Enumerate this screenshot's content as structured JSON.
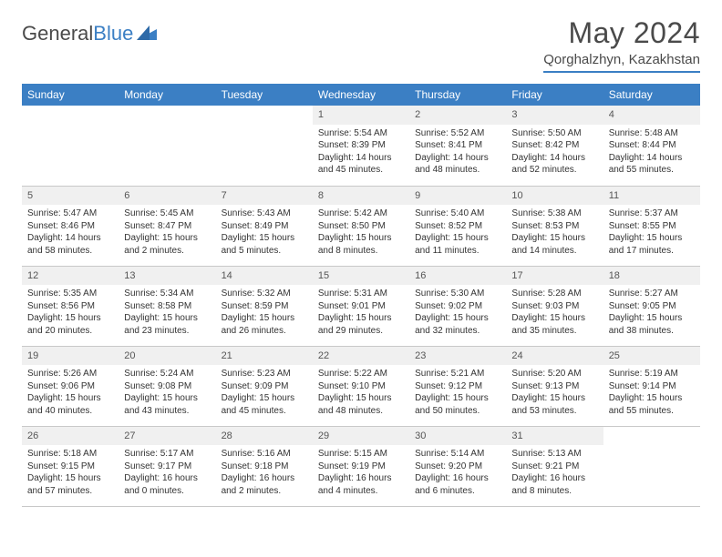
{
  "logo": {
    "part1": "General",
    "part2": "Blue"
  },
  "title": "May 2024",
  "subtitle": "Qorghalzhyn, Kazakhstan",
  "colors": {
    "accent": "#3b7fc4",
    "header_bg": "#3b7fc4",
    "header_text": "#ffffff",
    "daynum_bg": "#f0f0f0",
    "border": "#c8c8c8",
    "text": "#333333",
    "background": "#ffffff"
  },
  "columns": [
    "Sunday",
    "Monday",
    "Tuesday",
    "Wednesday",
    "Thursday",
    "Friday",
    "Saturday"
  ],
  "layout": {
    "weeks": 5,
    "first_day_col": 3,
    "days_in_month": 31
  },
  "days": {
    "1": {
      "sunrise": "5:54 AM",
      "sunset": "8:39 PM",
      "daylight": "14 hours and 45 minutes."
    },
    "2": {
      "sunrise": "5:52 AM",
      "sunset": "8:41 PM",
      "daylight": "14 hours and 48 minutes."
    },
    "3": {
      "sunrise": "5:50 AM",
      "sunset": "8:42 PM",
      "daylight": "14 hours and 52 minutes."
    },
    "4": {
      "sunrise": "5:48 AM",
      "sunset": "8:44 PM",
      "daylight": "14 hours and 55 minutes."
    },
    "5": {
      "sunrise": "5:47 AM",
      "sunset": "8:46 PM",
      "daylight": "14 hours and 58 minutes."
    },
    "6": {
      "sunrise": "5:45 AM",
      "sunset": "8:47 PM",
      "daylight": "15 hours and 2 minutes."
    },
    "7": {
      "sunrise": "5:43 AM",
      "sunset": "8:49 PM",
      "daylight": "15 hours and 5 minutes."
    },
    "8": {
      "sunrise": "5:42 AM",
      "sunset": "8:50 PM",
      "daylight": "15 hours and 8 minutes."
    },
    "9": {
      "sunrise": "5:40 AM",
      "sunset": "8:52 PM",
      "daylight": "15 hours and 11 minutes."
    },
    "10": {
      "sunrise": "5:38 AM",
      "sunset": "8:53 PM",
      "daylight": "15 hours and 14 minutes."
    },
    "11": {
      "sunrise": "5:37 AM",
      "sunset": "8:55 PM",
      "daylight": "15 hours and 17 minutes."
    },
    "12": {
      "sunrise": "5:35 AM",
      "sunset": "8:56 PM",
      "daylight": "15 hours and 20 minutes."
    },
    "13": {
      "sunrise": "5:34 AM",
      "sunset": "8:58 PM",
      "daylight": "15 hours and 23 minutes."
    },
    "14": {
      "sunrise": "5:32 AM",
      "sunset": "8:59 PM",
      "daylight": "15 hours and 26 minutes."
    },
    "15": {
      "sunrise": "5:31 AM",
      "sunset": "9:01 PM",
      "daylight": "15 hours and 29 minutes."
    },
    "16": {
      "sunrise": "5:30 AM",
      "sunset": "9:02 PM",
      "daylight": "15 hours and 32 minutes."
    },
    "17": {
      "sunrise": "5:28 AM",
      "sunset": "9:03 PM",
      "daylight": "15 hours and 35 minutes."
    },
    "18": {
      "sunrise": "5:27 AM",
      "sunset": "9:05 PM",
      "daylight": "15 hours and 38 minutes."
    },
    "19": {
      "sunrise": "5:26 AM",
      "sunset": "9:06 PM",
      "daylight": "15 hours and 40 minutes."
    },
    "20": {
      "sunrise": "5:24 AM",
      "sunset": "9:08 PM",
      "daylight": "15 hours and 43 minutes."
    },
    "21": {
      "sunrise": "5:23 AM",
      "sunset": "9:09 PM",
      "daylight": "15 hours and 45 minutes."
    },
    "22": {
      "sunrise": "5:22 AM",
      "sunset": "9:10 PM",
      "daylight": "15 hours and 48 minutes."
    },
    "23": {
      "sunrise": "5:21 AM",
      "sunset": "9:12 PM",
      "daylight": "15 hours and 50 minutes."
    },
    "24": {
      "sunrise": "5:20 AM",
      "sunset": "9:13 PM",
      "daylight": "15 hours and 53 minutes."
    },
    "25": {
      "sunrise": "5:19 AM",
      "sunset": "9:14 PM",
      "daylight": "15 hours and 55 minutes."
    },
    "26": {
      "sunrise": "5:18 AM",
      "sunset": "9:15 PM",
      "daylight": "15 hours and 57 minutes."
    },
    "27": {
      "sunrise": "5:17 AM",
      "sunset": "9:17 PM",
      "daylight": "16 hours and 0 minutes."
    },
    "28": {
      "sunrise": "5:16 AM",
      "sunset": "9:18 PM",
      "daylight": "16 hours and 2 minutes."
    },
    "29": {
      "sunrise": "5:15 AM",
      "sunset": "9:19 PM",
      "daylight": "16 hours and 4 minutes."
    },
    "30": {
      "sunrise": "5:14 AM",
      "sunset": "9:20 PM",
      "daylight": "16 hours and 6 minutes."
    },
    "31": {
      "sunrise": "5:13 AM",
      "sunset": "9:21 PM",
      "daylight": "16 hours and 8 minutes."
    }
  }
}
